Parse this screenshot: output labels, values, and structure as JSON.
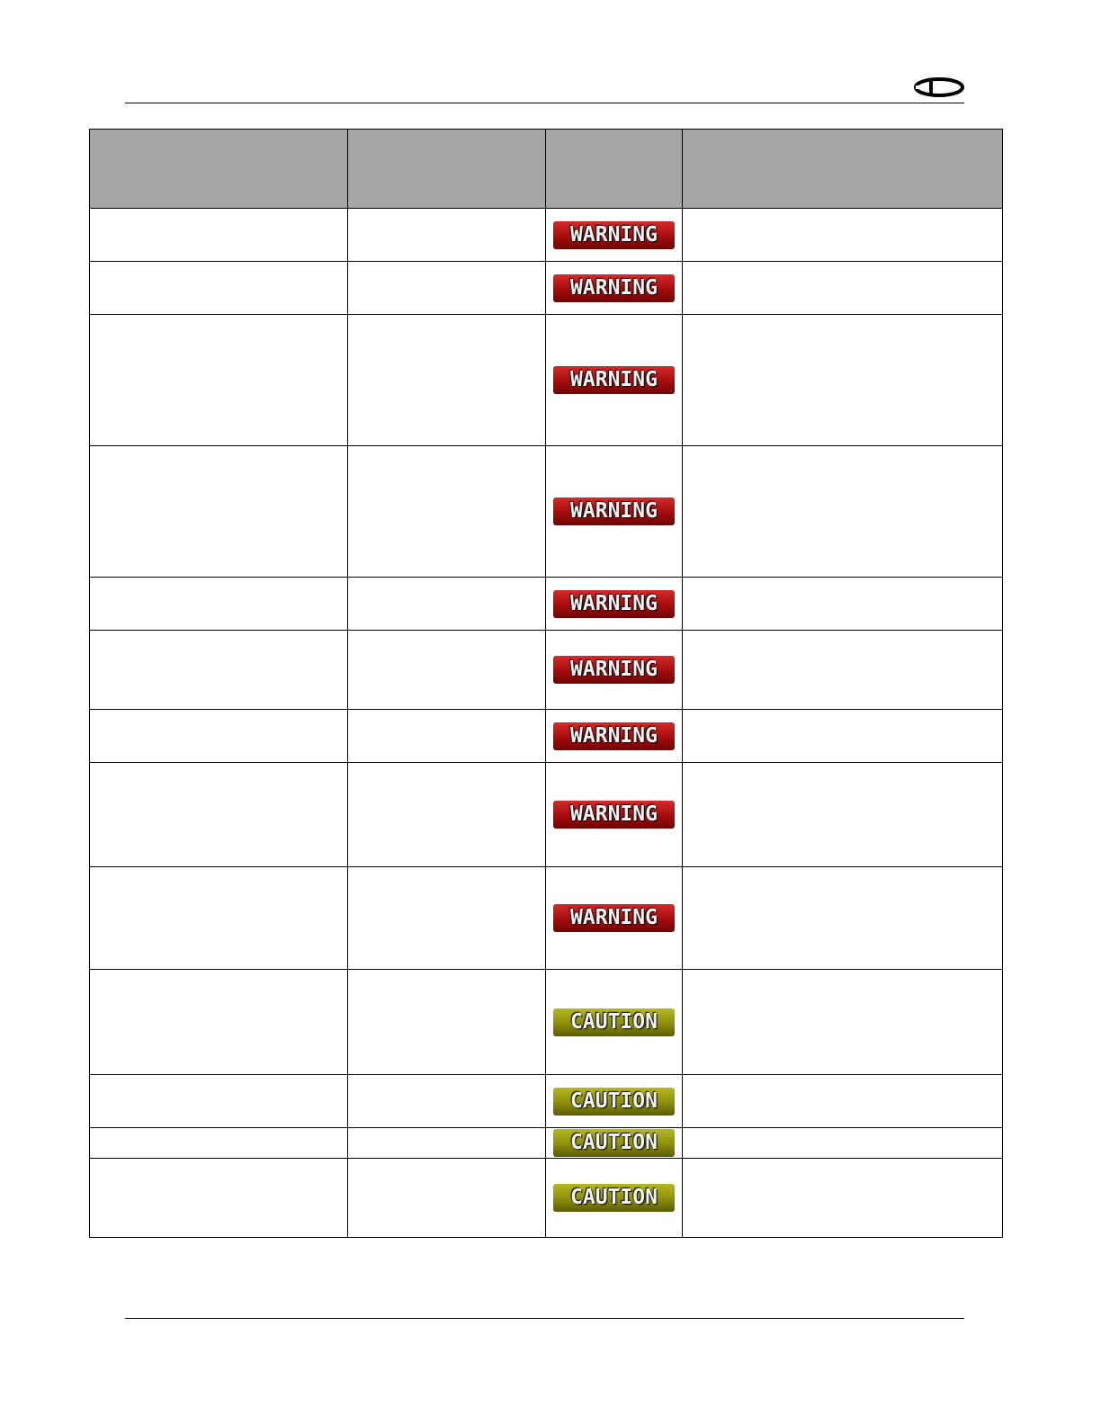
{
  "header": {
    "logo": "D"
  },
  "table": {
    "headers": [
      "",
      "",
      "",
      ""
    ],
    "rows": [
      {
        "badge": "WARNING",
        "level": "warning"
      },
      {
        "badge": "WARNING",
        "level": "warning"
      },
      {
        "badge": "WARNING",
        "level": "warning"
      },
      {
        "badge": "WARNING",
        "level": "warning"
      },
      {
        "badge": "WARNING",
        "level": "warning"
      },
      {
        "badge": "WARNING",
        "level": "warning"
      },
      {
        "badge": "WARNING",
        "level": "warning"
      },
      {
        "badge": "WARNING",
        "level": "warning"
      },
      {
        "badge": "WARNING",
        "level": "warning"
      },
      {
        "badge": "CAUTION",
        "level": "caution"
      },
      {
        "badge": "CAUTION",
        "level": "caution"
      },
      {
        "badge": "CAUTION",
        "level": "caution"
      },
      {
        "badge": "CAUTION",
        "level": "caution"
      }
    ]
  },
  "colors": {
    "warning": "#a50c0c",
    "caution": "#8c8e0a",
    "header_fill": "#a6a6a6"
  }
}
